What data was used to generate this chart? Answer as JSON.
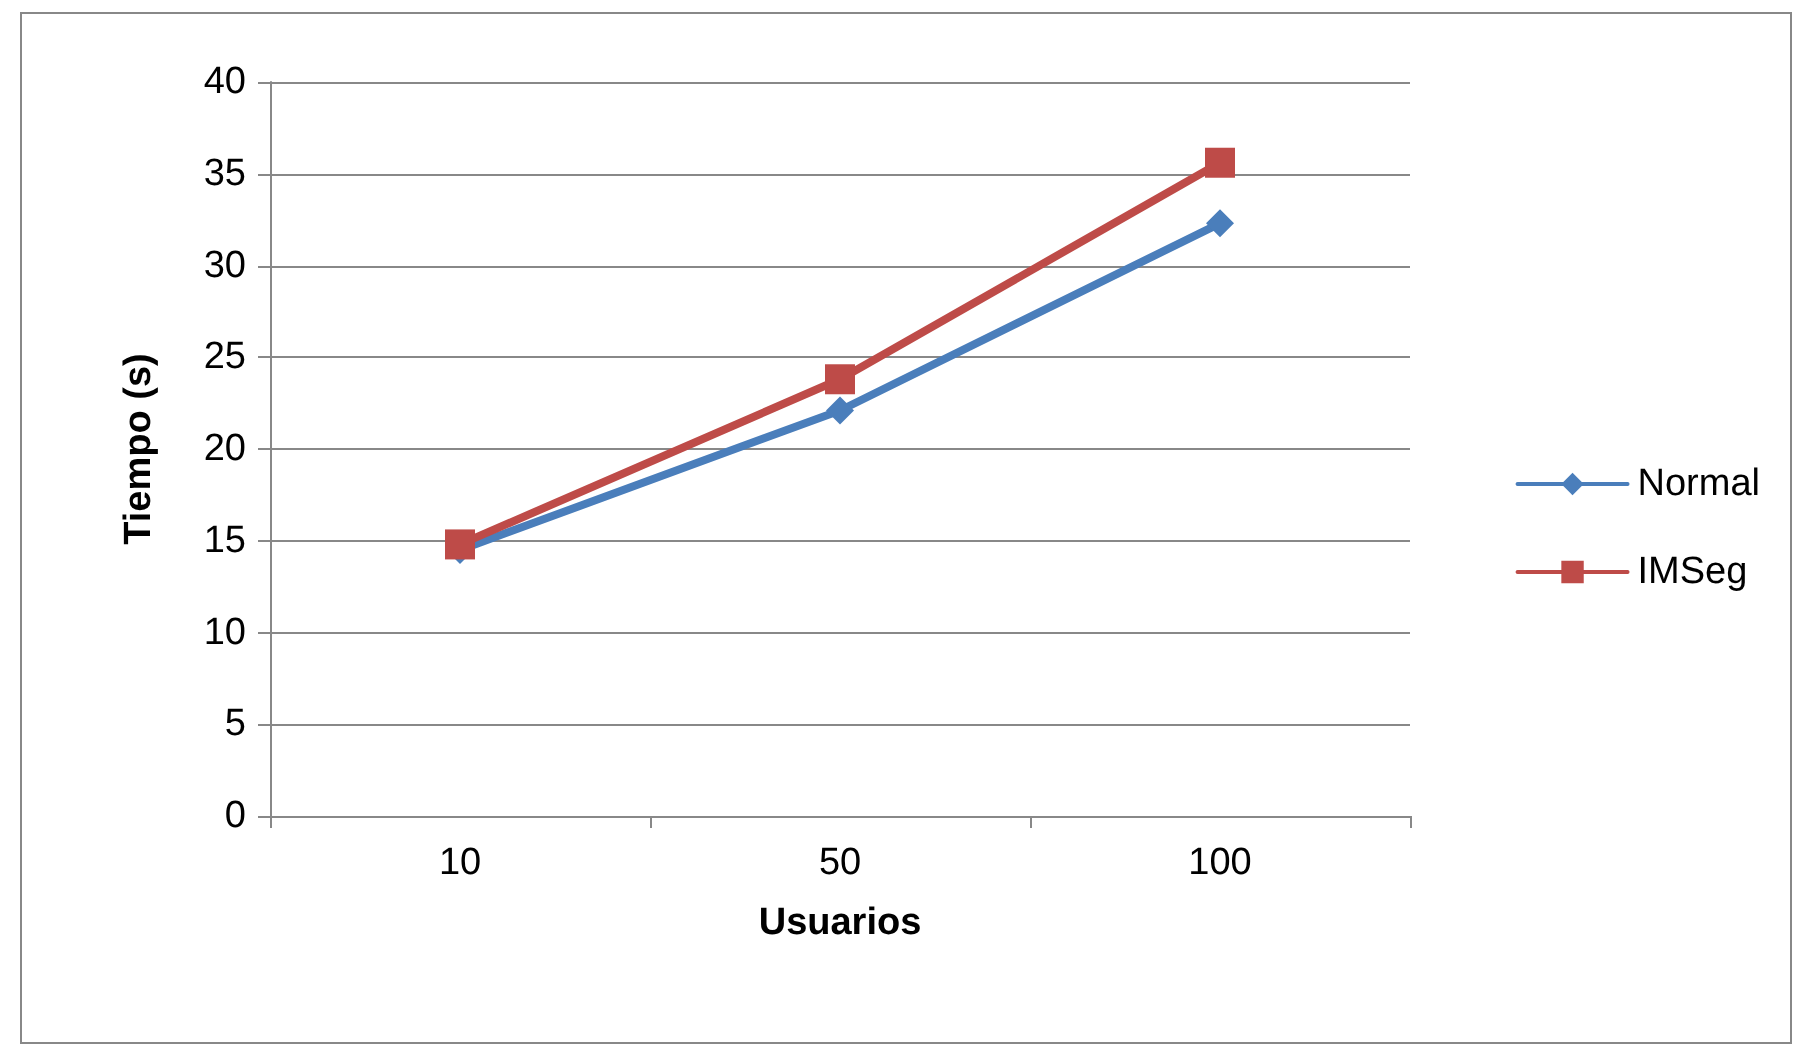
{
  "chart_data": {
    "type": "line",
    "xlabel": "Usuarios",
    "ylabel": "Tiempo (s)",
    "categories": [
      "10",
      "50",
      "100"
    ],
    "series": [
      {
        "name": "Normal",
        "color": "#4a7ebb",
        "marker": "diamond",
        "values": [
          14.5,
          22.1,
          32.3
        ]
      },
      {
        "name": "IMSeg",
        "color": "#be4b48",
        "marker": "square",
        "values": [
          14.8,
          23.8,
          35.6
        ]
      }
    ],
    "ylim": [
      0,
      40
    ],
    "yticks": [
      0,
      5,
      10,
      15,
      20,
      25,
      30,
      35,
      40
    ],
    "grid": "y",
    "legend": "right",
    "line_style": "solid"
  }
}
